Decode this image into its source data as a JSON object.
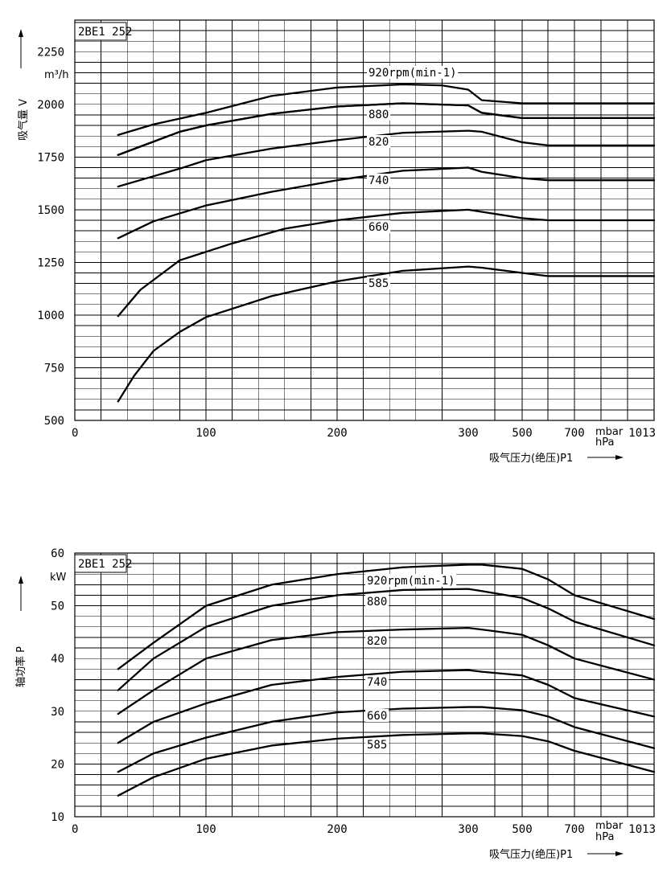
{
  "charts": {
    "flow": {
      "model": "2BE1 252",
      "ylabel": "吸气量 V",
      "yunit": "m³/h",
      "xlabel": "吸气压力(绝压)P1",
      "xunit_mbar": "mbar",
      "xunit_hpa": "hPa"
    },
    "power": {
      "model": "2BE1 252",
      "ylabel": "轴功率 P",
      "yunit": "kW",
      "xlabel": "吸气压力(绝压)P1",
      "xunit_mbar": "mbar",
      "xunit_hpa": "hPa"
    }
  },
  "chart_data": [
    {
      "type": "line",
      "title": "2BE1 252",
      "ylabel": "吸气量 V",
      "yunit": "m³/h",
      "xlabel": "吸气压力(绝压)P1",
      "xunit": "mbar / hPa",
      "x_ticks": [
        "0",
        "100",
        "200",
        "300",
        "500",
        "700",
        "1013"
      ],
      "x_scale": "nonlinear (0–300 linear, then 500, 700, 1013)",
      "y_ticks": [
        500,
        750,
        1000,
        1250,
        1500,
        1750,
        2000,
        2250
      ],
      "ylim": [
        500,
        2400
      ],
      "grid": true,
      "series": [
        {
          "name": "920rpm(min-1)",
          "x": [
            33,
            60,
            100,
            150,
            200,
            250,
            280,
            300,
            350,
            500,
            600,
            700,
            1013
          ],
          "y": [
            1855,
            1905,
            1960,
            2040,
            2080,
            2095,
            2090,
            2070,
            2020,
            2005,
            2005,
            2005,
            2005
          ]
        },
        {
          "name": "880",
          "x": [
            33,
            80,
            100,
            150,
            200,
            250,
            300,
            350,
            500,
            600,
            700,
            1013
          ],
          "y": [
            1760,
            1870,
            1900,
            1955,
            1990,
            2005,
            1995,
            1960,
            1935,
            1935,
            1935,
            1935
          ]
        },
        {
          "name": "820",
          "x": [
            33,
            80,
            100,
            150,
            200,
            250,
            300,
            350,
            500,
            600,
            700,
            1013
          ],
          "y": [
            1760,
            1870,
            1900,
            1955,
            1990,
            2005,
            1995,
            1960,
            1935,
            1935,
            1935,
            1935
          ]
        },
        {
          "name": "740",
          "x": [
            33,
            80,
            100,
            150,
            200,
            250,
            300,
            350,
            500,
            600,
            700,
            1013
          ],
          "y": [
            1610,
            1695,
            1735,
            1790,
            1830,
            1865,
            1875,
            1870,
            1820,
            1805,
            1805,
            1805
          ]
        },
        {
          "name": "660",
          "x": [
            33,
            60,
            100,
            150,
            200,
            250,
            300,
            350,
            500,
            600,
            700,
            1013
          ],
          "y": [
            1365,
            1445,
            1520,
            1585,
            1640,
            1685,
            1700,
            1680,
            1650,
            1640,
            1640,
            1640
          ]
        },
        {
          "name": "585",
          "x": [
            33,
            50,
            80,
            120,
            160,
            200,
            250,
            300,
            350,
            500,
            600,
            700,
            1013
          ],
          "y": [
            995,
            1120,
            1260,
            1340,
            1410,
            1450,
            1485,
            1500,
            1490,
            1460,
            1450,
            1450,
            1450
          ]
        },
        {
          "name": "",
          "x": [
            33,
            45,
            60,
            80,
            100,
            150,
            200,
            250,
            300,
            350,
            500,
            600,
            700,
            1013
          ],
          "y": [
            590,
            710,
            830,
            920,
            990,
            1090,
            1160,
            1210,
            1230,
            1225,
            1200,
            1185,
            1185,
            1185
          ]
        }
      ]
    },
    {
      "type": "line",
      "title": "2BE1 252",
      "ylabel": "轴功率 P",
      "yunit": "kW",
      "xlabel": "吸气压力(绝压)P1",
      "xunit": "mbar / hPa",
      "x_ticks": [
        "0",
        "100",
        "200",
        "300",
        "500",
        "700",
        "1013"
      ],
      "x_scale": "nonlinear (0–300 linear, then 500, 700, 1013)",
      "y_ticks": [
        10,
        20,
        30,
        40,
        50,
        60
      ],
      "ylim": [
        10,
        60
      ],
      "grid": true,
      "series": [
        {
          "name": "920rpm(min-1)",
          "x": [
            33,
            60,
            100,
            150,
            200,
            250,
            300,
            350,
            500,
            600,
            700,
            1013
          ],
          "y": [
            38,
            43,
            50,
            54,
            56,
            57.3,
            57.8,
            57.8,
            57,
            55,
            52,
            47.5
          ]
        },
        {
          "name": "880",
          "x": [
            33,
            60,
            100,
            150,
            200,
            250,
            300,
            350,
            500,
            600,
            700,
            1013
          ],
          "y": [
            34,
            40,
            46,
            50,
            52,
            53,
            53.2,
            52.8,
            51.5,
            49.5,
            47,
            42.5
          ]
        },
        {
          "name": "820",
          "x": [
            33,
            60,
            100,
            150,
            200,
            250,
            300,
            350,
            500,
            600,
            700,
            1013
          ],
          "y": [
            29.5,
            34,
            40,
            43.5,
            45,
            45.5,
            45.8,
            45.5,
            44.5,
            42.5,
            40,
            36
          ]
        },
        {
          "name": "740",
          "x": [
            33,
            60,
            100,
            150,
            200,
            250,
            300,
            350,
            500,
            600,
            700,
            1013
          ],
          "y": [
            24,
            28,
            31.5,
            35,
            36.5,
            37.5,
            37.8,
            37.5,
            36.8,
            35,
            32.5,
            29
          ]
        },
        {
          "name": "660",
          "x": [
            33,
            60,
            100,
            150,
            200,
            250,
            300,
            350,
            500,
            600,
            700,
            1013
          ],
          "y": [
            18.5,
            22,
            25,
            28,
            29.8,
            30.5,
            30.8,
            30.8,
            30.2,
            29,
            27,
            23
          ]
        },
        {
          "name": "585",
          "x": [
            33,
            60,
            100,
            150,
            200,
            250,
            300,
            350,
            500,
            600,
            700,
            1013
          ],
          "y": [
            14,
            17.5,
            21,
            23.5,
            24.8,
            25.5,
            25.8,
            25.8,
            25.3,
            24.3,
            22.5,
            18.5
          ]
        }
      ]
    }
  ],
  "curve_labels": {
    "flow": [
      "920rpm(min-1)",
      "880",
      "820",
      "740",
      "660",
      "585"
    ],
    "power": [
      "920rpm(min-1)",
      "880",
      "820",
      "740",
      "660",
      "585"
    ]
  }
}
